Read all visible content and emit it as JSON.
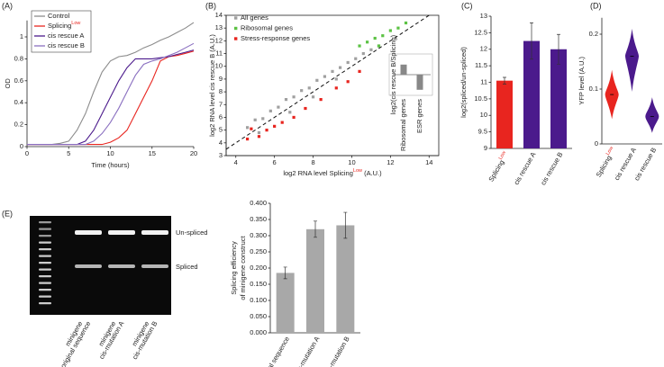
{
  "chart_data": [
    {
      "type": "line",
      "panel_label": "(A)",
      "x_label": "Time (hours)",
      "y_label": "OD",
      "x": [
        0,
        1,
        2,
        3,
        4,
        5,
        6,
        7,
        8,
        9,
        10,
        11,
        12,
        13,
        14,
        15,
        16,
        17,
        18,
        19,
        20
      ],
      "xlim": [
        0,
        20
      ],
      "xticks": [
        0,
        5,
        10,
        15,
        20
      ],
      "ylim": [
        0,
        1.15
      ],
      "yticks": [
        0,
        0.2,
        0.4,
        0.6,
        0.8,
        1
      ],
      "legend": "upper left",
      "series": [
        {
          "name": "Control",
          "color": "#8c8c8c",
          "values": [
            0.02,
            0.02,
            0.02,
            0.02,
            0.03,
            0.05,
            0.15,
            0.3,
            0.5,
            0.68,
            0.78,
            0.82,
            0.83,
            0.86,
            0.9,
            0.93,
            0.97,
            1.0,
            1.04,
            1.08,
            1.13
          ]
        },
        {
          "name": "Splicing",
          "name_superscript": "Low",
          "color": "#e8251f",
          "values": [
            0.02,
            0.02,
            0.02,
            0.02,
            0.02,
            0.02,
            0.02,
            0.02,
            0.02,
            0.02,
            0.04,
            0.08,
            0.15,
            0.3,
            0.45,
            0.6,
            0.78,
            0.82,
            0.83,
            0.85,
            0.87
          ]
        },
        {
          "name": "cis rescue A",
          "color": "#4b1a8c",
          "values": [
            0.02,
            0.02,
            0.02,
            0.02,
            0.02,
            0.02,
            0.02,
            0.05,
            0.15,
            0.3,
            0.45,
            0.6,
            0.72,
            0.8,
            0.8,
            0.8,
            0.81,
            0.82,
            0.84,
            0.86,
            0.88
          ]
        },
        {
          "name": "cis rescue B",
          "color": "#8a6fc0",
          "values": [
            0.02,
            0.02,
            0.02,
            0.02,
            0.02,
            0.02,
            0.02,
            0.02,
            0.05,
            0.12,
            0.22,
            0.35,
            0.5,
            0.65,
            0.75,
            0.78,
            0.8,
            0.83,
            0.86,
            0.9,
            0.94
          ]
        }
      ]
    },
    {
      "type": "scatter",
      "panel_label": "(B)",
      "x_label": "log2 RNA level Splicing",
      "x_label_superscript": "Low",
      "x_label_end": " (A.U.)",
      "y_label": "log2 RNA level cis rescue B (A.U.)",
      "xlim": [
        3.5,
        14.5
      ],
      "xticks": [
        4,
        6,
        8,
        10,
        12,
        14
      ],
      "ylim": [
        3,
        14
      ],
      "yticks": [
        3,
        4,
        5,
        6,
        7,
        8,
        9,
        10,
        11,
        12,
        13,
        14
      ],
      "legend": "upper left",
      "series": [
        {
          "name": "All genes",
          "color": "#a0a0a0",
          "x": [
            4.6,
            5,
            5.4,
            5.8,
            6.2,
            6.6,
            7,
            7.4,
            7.8,
            8.2,
            8.6,
            9,
            9.4,
            9.8,
            10.2,
            10.6,
            11,
            11.4,
            5.2,
            6.8,
            8,
            9.2
          ],
          "values": [
            5.2,
            5.8,
            5.9,
            6.5,
            6.8,
            7.4,
            7.6,
            8.1,
            8.3,
            8.9,
            9.2,
            9.6,
            9.9,
            10.3,
            10.6,
            11,
            11.3,
            11.6,
            4.8,
            6.4,
            7.6,
            9.0
          ]
        },
        {
          "name": "Ribosomal genes",
          "color": "#5cc244",
          "x": [
            10.4,
            10.8,
            11.2,
            11.6,
            12,
            12.4,
            12.8,
            11.4
          ],
          "values": [
            11.6,
            11.9,
            12.2,
            12.4,
            12.8,
            13.0,
            13.4,
            11.6
          ]
        },
        {
          "name": "Stress-response genes",
          "color": "#e8251f",
          "x": [
            4.6,
            4.8,
            5.2,
            5.6,
            6,
            6.4,
            7,
            7.6,
            8.4,
            9.2,
            9.8,
            10.4
          ],
          "values": [
            4.3,
            5.1,
            4.5,
            5.0,
            5.3,
            5.6,
            6.0,
            6.7,
            7.4,
            8.3,
            8.8,
            9.6
          ]
        }
      ],
      "inset": {
        "type": "bar",
        "y_label": "log2(cis rescue B/Splicing)",
        "categories": [
          "Ribosomal genes",
          "ESR genes"
        ],
        "values": [
          0.8,
          -1.2
        ],
        "ylim": [
          -1.5,
          1.5
        ],
        "color": "#888888"
      }
    },
    {
      "type": "bar",
      "panel_label": "(C)",
      "y_label": "log2(spliced/un-spliced)",
      "categories": [
        "Splicing",
        "cis rescue A",
        "cis rescue B"
      ],
      "category_superscripts": [
        "Low",
        null,
        null
      ],
      "values": [
        11.05,
        12.25,
        12.0
      ],
      "errors": [
        0.1,
        0.55,
        0.45
      ],
      "colors": [
        "#e8251f",
        "#4b1a8c",
        "#4b1a8c"
      ],
      "ylim": [
        9,
        13
      ],
      "yticks": [
        9,
        9.5,
        10,
        10.5,
        11,
        11.5,
        12,
        12.5,
        13
      ]
    },
    {
      "type": "violin",
      "panel_label": "(D)",
      "y_label": "YFP level (A.U.)",
      "categories": [
        "Splicing",
        "cis rescue A",
        "cis rescue B"
      ],
      "category_superscripts": [
        "Low",
        null,
        null
      ],
      "values": [
        0.09,
        0.16,
        0.05
      ],
      "mins": [
        0.045,
        0.095,
        0.02
      ],
      "maxs": [
        0.135,
        0.21,
        0.085
      ],
      "colors": [
        "#e8251f",
        "#4b1a8c",
        "#4b1a8c"
      ],
      "ylim": [
        0,
        0.23
      ],
      "yticks": [
        0,
        0.1,
        0.2
      ]
    },
    {
      "type": "gel",
      "panel_label": "(E)",
      "lanes": [
        [
          "minigene",
          "original sequence"
        ],
        [
          "minigene",
          "cis-mutation A"
        ],
        [
          "minigene",
          "cis-mutation B"
        ]
      ],
      "band_labels": [
        "Un-spliced",
        "Spliced"
      ]
    },
    {
      "type": "bar",
      "y_label": [
        "Splicing efficiency",
        "of minigene construct"
      ],
      "categories": [
        "original sequence",
        "cis-mutation A",
        "cis-mutation B"
      ],
      "values": [
        0.185,
        0.32,
        0.332
      ],
      "errors": [
        0.018,
        0.025,
        0.04
      ],
      "colors": [
        "#a8a8a8",
        "#a8a8a8",
        "#a8a8a8"
      ],
      "ylim": [
        0,
        0.4
      ],
      "yticks": [
        {
          "value": 0,
          "label": "0.000"
        },
        {
          "value": 0.05,
          "label": "0.050"
        },
        {
          "value": 0.1,
          "label": "0.100"
        },
        {
          "value": 0.15,
          "label": "0.150"
        },
        {
          "value": 0.2,
          "label": "0.200"
        },
        {
          "value": 0.25,
          "label": "0.250"
        },
        {
          "value": 0.3,
          "label": "0.300"
        },
        {
          "value": 0.35,
          "label": "0.350"
        },
        {
          "value": 0.4,
          "label": "0.400"
        }
      ]
    }
  ]
}
